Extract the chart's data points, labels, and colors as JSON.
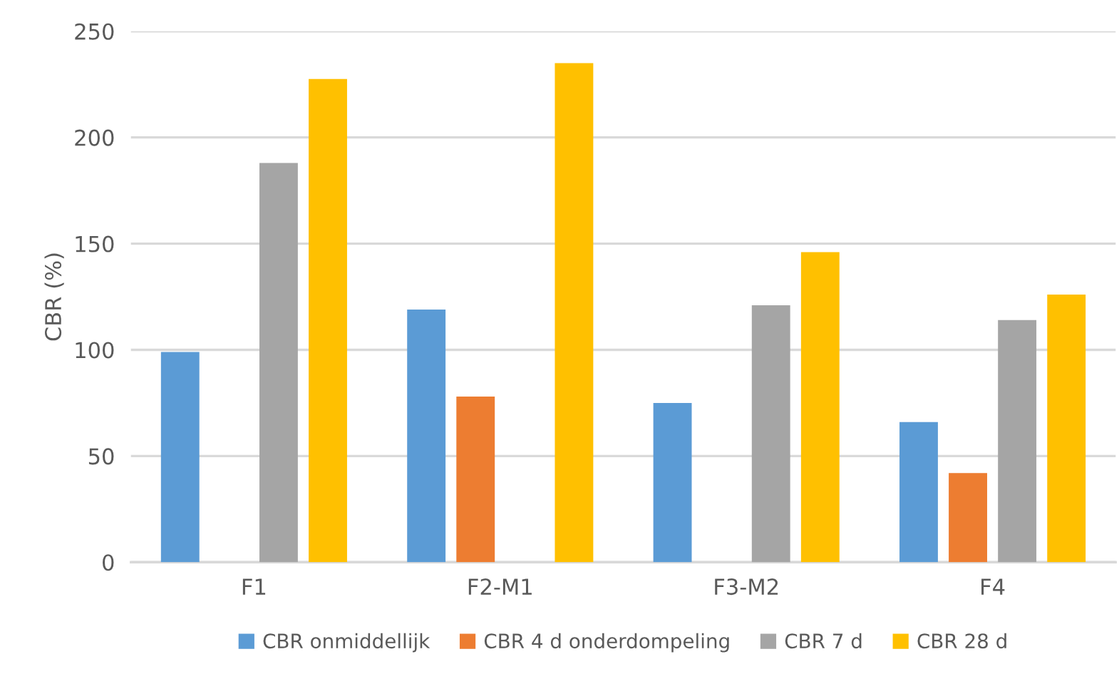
{
  "chart_data": {
    "type": "bar",
    "ylabel": "CBR (%)",
    "categories": [
      "F1",
      "F2-M1",
      "F3-M2",
      "F4"
    ],
    "series": [
      {
        "name": "CBR onmiddellijk",
        "color": "#5b9bd5",
        "values": [
          99,
          119,
          75,
          66
        ]
      },
      {
        "name": "CBR 4 d onderdompeling",
        "color": "#ed7d31",
        "values": [
          null,
          78,
          null,
          42
        ]
      },
      {
        "name": "CBR 7 d",
        "color": "#a5a5a5",
        "values": [
          188,
          null,
          121,
          114
        ]
      },
      {
        "name": "CBR 28 d",
        "color": "#ffc000",
        "values": [
          227.5,
          235,
          146,
          126
        ]
      }
    ],
    "ylim": [
      0,
      250
    ],
    "yticks": [
      0,
      50,
      100,
      150,
      200,
      250
    ],
    "grid": "y",
    "legend": "bottom"
  }
}
